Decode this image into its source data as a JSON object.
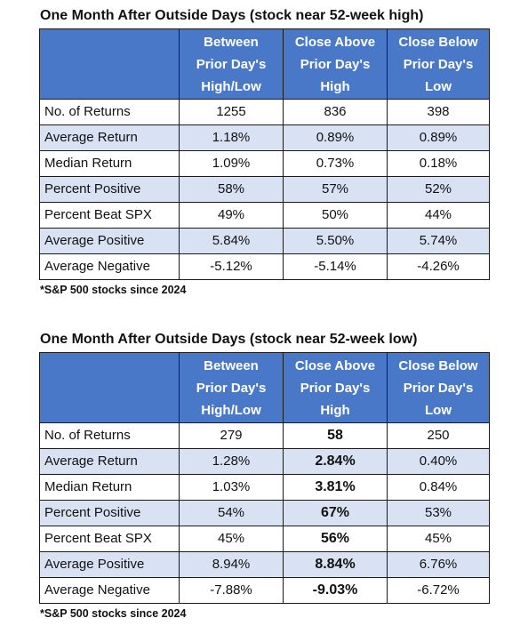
{
  "tables": [
    {
      "title": "One Month After Outside Days (stock near 52-week high)",
      "headers": [
        "",
        "Between\nPrior Day's\nHigh/Low",
        "Close Above\nPrior Day's\nHigh",
        "Close Below\nPrior Day's\nLow"
      ],
      "rows": [
        {
          "label": "No. of Returns",
          "values": [
            "1255",
            "836",
            "398"
          ]
        },
        {
          "label": "Average Return",
          "values": [
            "1.18%",
            "0.89%",
            "0.89%"
          ]
        },
        {
          "label": "Median Return",
          "values": [
            "1.09%",
            "0.73%",
            "0.18%"
          ]
        },
        {
          "label": "Percent Positive",
          "values": [
            "58%",
            "57%",
            "52%"
          ]
        },
        {
          "label": "Percent Beat SPX",
          "values": [
            "49%",
            "50%",
            "44%"
          ]
        },
        {
          "label": "Average Positive",
          "values": [
            "5.84%",
            "5.50%",
            "5.74%"
          ]
        },
        {
          "label": "Average Negative",
          "values": [
            "-5.12%",
            "-5.14%",
            "-4.26%"
          ]
        }
      ],
      "footnote": "*S&P 500 stocks since 2024"
    },
    {
      "title": "One Month After Outside Days (stock near 52-week low)",
      "headers": [
        "",
        "Between\nPrior Day's\nHigh/Low",
        "Close Above\nPrior Day's\nHigh",
        "Close Below\nPrior Day's\nLow"
      ],
      "rows": [
        {
          "label": "No. of Returns",
          "values": [
            "279",
            "58",
            "250"
          ]
        },
        {
          "label": "Average Return",
          "values": [
            "1.28%",
            "2.84%",
            "0.40%"
          ]
        },
        {
          "label": "Median Return",
          "values": [
            "1.03%",
            "3.81%",
            "0.84%"
          ]
        },
        {
          "label": "Percent Positive",
          "values": [
            "54%",
            "67%",
            "53%"
          ]
        },
        {
          "label": "Percent Beat SPX",
          "values": [
            "45%",
            "56%",
            "45%"
          ]
        },
        {
          "label": "Average Positive",
          "values": [
            "8.94%",
            "8.84%",
            "6.76%"
          ]
        },
        {
          "label": "Average Negative",
          "values": [
            "-7.88%",
            "-9.03%",
            "-6.72%"
          ]
        }
      ],
      "bold_column": 1,
      "footnote": "*S&P 500 stocks since 2024"
    }
  ],
  "colors": {
    "header_bg": "#4a78c8",
    "header_text": "#ffffff",
    "alt_row_bg": "#d9e2f3",
    "border": "#1a1a1a"
  }
}
